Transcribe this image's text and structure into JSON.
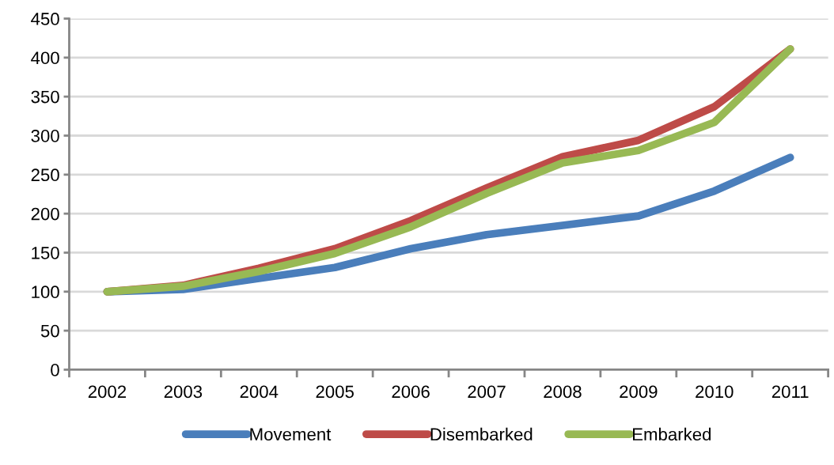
{
  "chart_data": {
    "type": "line",
    "categories": [
      "2002",
      "2003",
      "2004",
      "2005",
      "2006",
      "2007",
      "2008",
      "2009",
      "2010",
      "2011"
    ],
    "series": [
      {
        "name": "Movement",
        "color": "#4a7ebb",
        "values": [
          100,
          103,
          117,
          131,
          155,
          173,
          185,
          197,
          229,
          272
        ]
      },
      {
        "name": "Disembarked",
        "color": "#be4b48",
        "values": [
          100,
          108,
          130,
          155,
          191,
          233,
          273,
          294,
          337,
          411
        ]
      },
      {
        "name": "Embarked",
        "color": "#98b954",
        "values": [
          100,
          107,
          126,
          149,
          183,
          226,
          265,
          281,
          317,
          411
        ]
      }
    ],
    "ylim": [
      0,
      450
    ],
    "yticks": [
      0,
      50,
      100,
      150,
      200,
      250,
      300,
      350,
      400,
      450
    ],
    "grid": "y",
    "legend": "bottom",
    "marker": "none",
    "line_style": "solid"
  }
}
